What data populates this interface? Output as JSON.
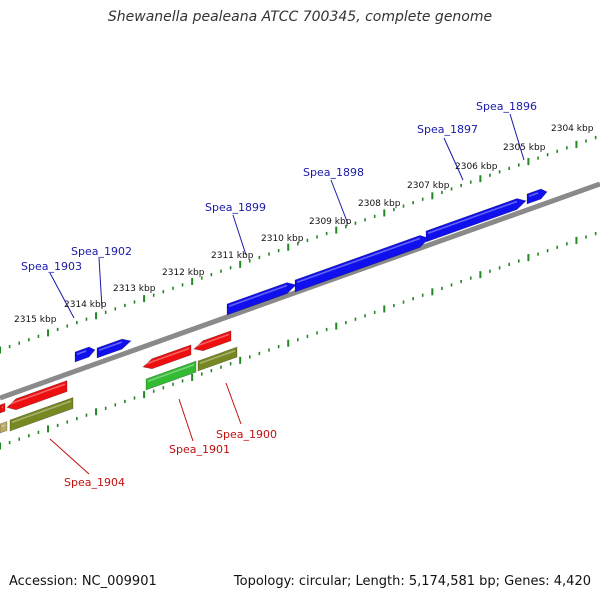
{
  "title": "Shewanella pealeana ATCC 700345, complete genome",
  "footer": {
    "accession": "Accession: NC_009901",
    "summary": "Topology: circular; Length: 5,174,581 bp; Genes: 4,420"
  },
  "colors": {
    "forward_gene": "#1010ee",
    "reverse_gene": "#ee1010",
    "green_feature": "#33bb33",
    "olive_feature": "#778822",
    "tan_feature": "#bbaa66",
    "backbone": "#8a8a8a",
    "ruler": "#228822",
    "forward_label": "#1a1aa8",
    "reverse_label": "#c01010"
  },
  "ruler_labels": [
    "2304 kbp",
    "2305 kbp",
    "2306 kbp",
    "2307 kbp",
    "2308 kbp",
    "2309 kbp",
    "2310 kbp",
    "2311 kbp",
    "2312 kbp",
    "2313 kbp",
    "2314 kbp",
    "2315 kbp"
  ],
  "forward_genes": [
    "Spea_1896",
    "Spea_1897",
    "Spea_1898",
    "Spea_1899",
    "Spea_1902",
    "Spea_1903"
  ],
  "reverse_genes": [
    "Spea_1900",
    "Spea_1901",
    "Spea_1904"
  ]
}
